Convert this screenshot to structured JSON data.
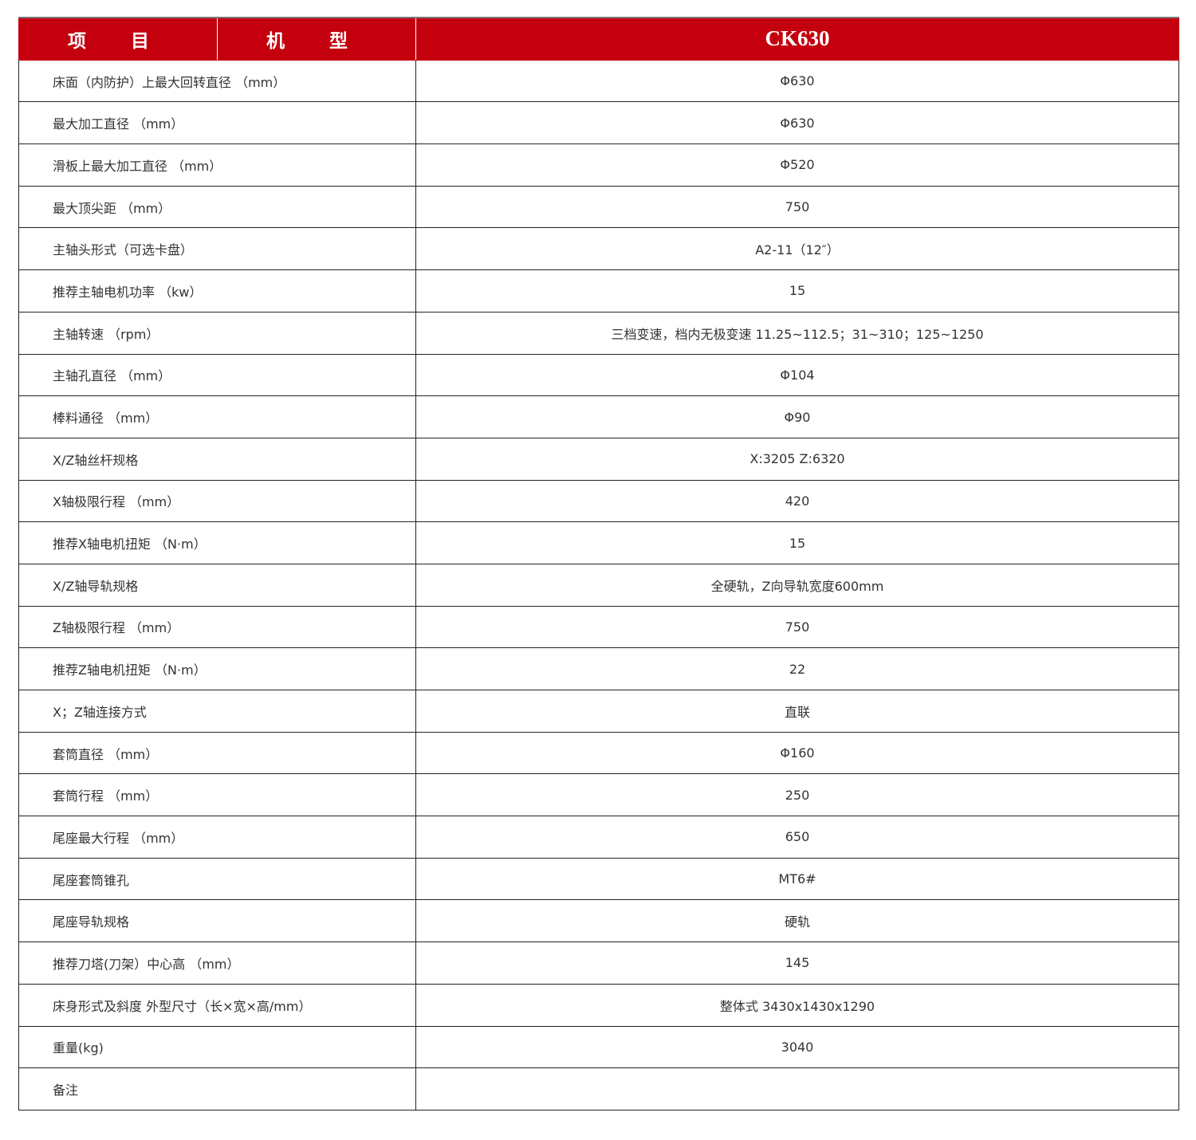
{
  "header": {
    "col_item": "项 目",
    "col_type": "机 型",
    "model": "CK630"
  },
  "colors": {
    "header_bg": "#c4000f",
    "header_text": "#ffffff",
    "border": "#222222"
  },
  "rows": [
    {
      "label": "床面（内防护）上最大回转直径 （mm）",
      "value": "Φ630"
    },
    {
      "label": "最大加工直径 （mm）",
      "value": "Φ630"
    },
    {
      "label": "滑板上最大加工直径 （mm）",
      "value": "Φ520"
    },
    {
      "label": "最大顶尖距 （mm）",
      "value": "750"
    },
    {
      "label": "主轴头形式（可选卡盘）",
      "value": "A2-11（12″）"
    },
    {
      "label": "推荐主轴电机功率 （kw）",
      "value": "15"
    },
    {
      "label": "主轴转速 （rpm）",
      "value": "三档变速，档内无极变速   11.25~112.5；31~310；125~1250"
    },
    {
      "label": "主轴孔直径 （mm）",
      "value": "Φ104"
    },
    {
      "label": "棒料通径 （mm）",
      "value": "Φ90"
    },
    {
      "label": "X/Z轴丝杆规格",
      "value": "X:3205 Z:6320"
    },
    {
      "label": "X轴极限行程 （mm）",
      "value": "420"
    },
    {
      "label": "推荐X轴电机扭矩 （N·m）",
      "value": "15"
    },
    {
      "label": "X/Z轴导轨规格",
      "value": "全硬轨，Z向导轨宽度600mm"
    },
    {
      "label": "Z轴极限行程 （mm）",
      "value": "750"
    },
    {
      "label": "推荐Z轴电机扭矩 （N·m）",
      "value": "22"
    },
    {
      "label": "X；Z轴连接方式",
      "value": "直联"
    },
    {
      "label": "套筒直径 （mm）",
      "value": "Φ160"
    },
    {
      "label": "套筒行程 （mm）",
      "value": "250"
    },
    {
      "label": "尾座最大行程 （mm）",
      "value": "650"
    },
    {
      "label": "尾座套筒锥孔",
      "value": "MT6#"
    },
    {
      "label": "尾座导轨规格",
      "value": "硬轨"
    },
    {
      "label": "推荐刀塔(刀架）中心高 （mm）",
      "value": "145"
    },
    {
      "label": "床身形式及斜度  外型尺寸（长×宽×高/mm）",
      "value": "整体式   3430x1430x1290"
    },
    {
      "label": "重量(kg)",
      "value": "3040"
    },
    {
      "label": "备注",
      "value": ""
    }
  ]
}
